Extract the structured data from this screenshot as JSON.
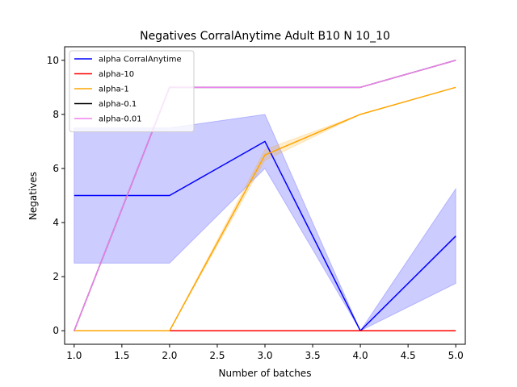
{
  "chart_data": {
    "type": "line",
    "title": "Negatives CorralAnytime Adult B10 N 10_10",
    "xlabel": "Number of batches",
    "ylabel": "Negatives",
    "xlim": [
      0.9,
      5.1
    ],
    "ylim": [
      -0.5,
      10.5
    ],
    "xticks": [
      1.0,
      1.5,
      2.0,
      2.5,
      3.0,
      3.5,
      4.0,
      4.5,
      5.0
    ],
    "xtick_labels": [
      "1.0",
      "1.5",
      "2.0",
      "2.5",
      "3.0",
      "3.5",
      "4.0",
      "4.5",
      "5.0"
    ],
    "yticks": [
      0,
      2,
      4,
      6,
      8,
      10
    ],
    "ytick_labels": [
      "0",
      "2",
      "4",
      "6",
      "8",
      "10"
    ],
    "grid": false,
    "legend_position": "top-left",
    "x": [
      1,
      2,
      3,
      4,
      5
    ],
    "series": [
      {
        "name": "alpha CorralAnytime",
        "color": "#0000ff",
        "values": [
          5,
          5,
          7,
          0,
          3.5
        ],
        "band_lower": [
          2.5,
          2.5,
          6.0,
          0,
          1.75
        ],
        "band_upper": [
          7.5,
          7.5,
          8.0,
          0,
          5.25
        ]
      },
      {
        "name": "alpha-10",
        "color": "#ff0000",
        "values": [
          0,
          0,
          0,
          0,
          0
        ]
      },
      {
        "name": "alpha-1",
        "color": "#ffa500",
        "values": [
          0,
          0,
          6.5,
          8,
          9
        ],
        "band_lower": [
          0,
          0,
          6.3,
          8,
          9
        ],
        "band_upper": [
          0,
          0,
          6.7,
          8,
          9
        ]
      },
      {
        "name": "alpha-0.1",
        "color": "#000000",
        "values": [
          0,
          9,
          9,
          9,
          10
        ]
      },
      {
        "name": "alpha-0.01",
        "color": "#ee82ee",
        "values": [
          0,
          9,
          9,
          9,
          10
        ]
      }
    ]
  }
}
